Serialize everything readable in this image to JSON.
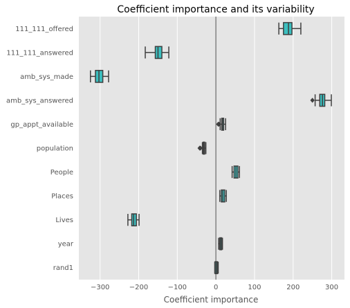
{
  "chart_data": {
    "type": "boxplot",
    "orientation": "horizontal",
    "title": "Coefficient importance and its variability",
    "xlabel": "Coefficient importance",
    "ylabel": "",
    "xlim": [
      -355,
      333
    ],
    "xticks": [
      -300,
      -200,
      -100,
      0,
      100,
      200,
      300
    ],
    "grid": true,
    "zero_line": 0,
    "colors": {
      "background": "#e5e5e5",
      "grid": "#ffffff",
      "box_fill": "#3bbfbf",
      "box_edge": "#3f3f3f",
      "zero_line": "#888888"
    },
    "categories": [
      "111_111_offered",
      "111_111_answered",
      "amb_sys_made",
      "amb_sys_answered",
      "gp_appt_available",
      "population",
      "People",
      "Places",
      "Lives",
      "year",
      "rand1"
    ],
    "boxes": [
      {
        "whislo": 163,
        "q1": 175,
        "med": 188,
        "q3": 197,
        "whishi": 220,
        "fliers": []
      },
      {
        "whislo": -183,
        "q1": -157,
        "med": -150,
        "q3": -140,
        "whishi": -122,
        "fliers": []
      },
      {
        "whislo": -325,
        "q1": -312,
        "med": -303,
        "q3": -293,
        "whishi": -278,
        "fliers": []
      },
      {
        "whislo": 257,
        "q1": 269,
        "med": 276,
        "q3": 282,
        "whishi": 299,
        "fliers": [
          250
        ]
      },
      {
        "whislo": 11,
        "q1": 15,
        "med": 17,
        "q3": 20,
        "whishi": 25,
        "fliers": [
          6,
          8
        ]
      },
      {
        "whislo": -35,
        "q1": -33,
        "med": -31,
        "q3": -29,
        "whishi": -26,
        "fliers": [
          -42,
          -40
        ]
      },
      {
        "whislo": 42,
        "q1": 47,
        "med": 52,
        "q3": 57,
        "whishi": 61,
        "fliers": []
      },
      {
        "whislo": 10,
        "q1": 14,
        "med": 18,
        "q3": 23,
        "whishi": 27,
        "fliers": []
      },
      {
        "whislo": -228,
        "q1": -218,
        "med": -213,
        "q3": -206,
        "whishi": -199,
        "fliers": []
      },
      {
        "whislo": 7,
        "q1": 10,
        "med": 12,
        "q3": 15,
        "whishi": 17,
        "fliers": []
      },
      {
        "whislo": -3,
        "q1": -2,
        "med": 1,
        "q3": 4,
        "whishi": 6,
        "fliers": []
      }
    ]
  }
}
